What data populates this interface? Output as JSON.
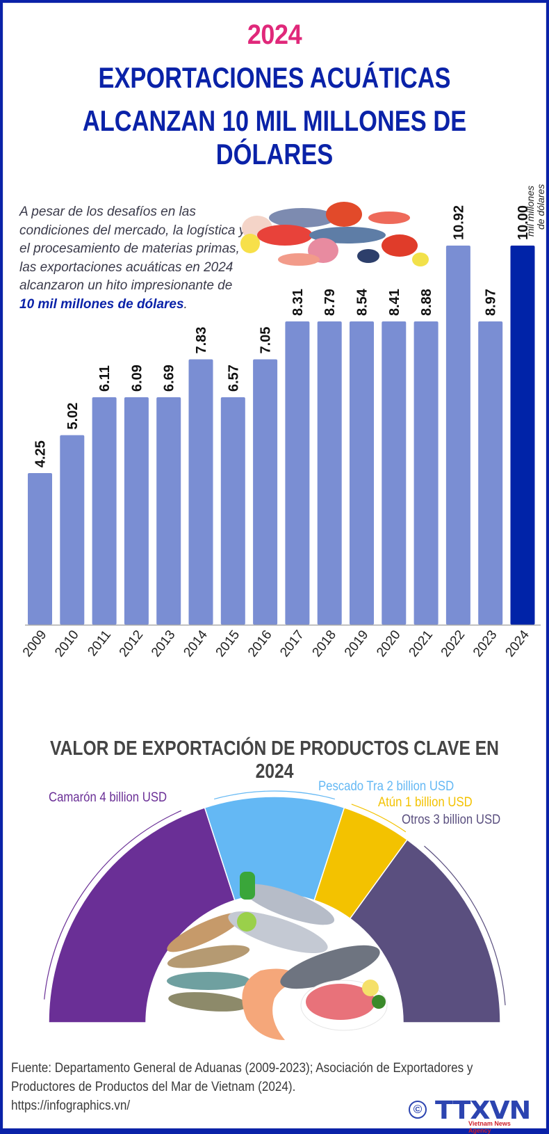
{
  "header": {
    "year": "2024",
    "title_line1": "EXPORTACIONES ACUÁTICAS",
    "title_line2": "ALCANZAN 10 MIL MILLONES DE DÓLARES"
  },
  "intro": {
    "text_before": "A pesar de los desafíos en las condiciones del mercado, la logística y el procesamiento de materias primas, las exportaciones acuáticas en 2024 alcanzaron un hito impresionante de ",
    "highlight": "10 mil millones de dólares",
    "text_after": "."
  },
  "colors": {
    "frame": "#0a22a8",
    "year": "#e0287a",
    "bar": "#7a8ed3",
    "bar_highlight": "#0023a8",
    "camaron": "#6a2f96",
    "pescado_tra": "#64b8f4",
    "atun": "#f3c200",
    "otros": "#5a4f7f"
  },
  "chart_data": [
    {
      "type": "bar",
      "title": "Exportaciones acuáticas",
      "unit_note": "mil millones de dólares",
      "categories": [
        "2009",
        "2010",
        "2011",
        "2012",
        "2013",
        "2014",
        "2015",
        "2016",
        "2017",
        "2018",
        "2019",
        "2020",
        "2021",
        "2022",
        "2023",
        "2024"
      ],
      "values": [
        4.25,
        5.02,
        6.11,
        6.09,
        6.69,
        7.83,
        6.57,
        7.05,
        8.31,
        8.79,
        8.54,
        8.41,
        8.88,
        10.92,
        8.97,
        10.0
      ],
      "value_labels": [
        "4.25",
        "5.02",
        "6.11",
        "6.09",
        "6.69",
        "7.83",
        "6.57",
        "7.05",
        "8.31",
        "8.79",
        "8.54",
        "8.41",
        "8.88",
        "10.92",
        "8.97",
        "10.00"
      ],
      "highlight_category": "2024",
      "xlabel": "",
      "ylabel": "",
      "grid": false
    },
    {
      "type": "pie",
      "variant": "half-donut",
      "title": "VALOR DE EXPORTACIÓN DE PRODUCTOS CLAVE EN 2024",
      "categories": [
        "Camarón",
        "Pescado Tra",
        "Atún",
        "Otros"
      ],
      "values": [
        4,
        2,
        1,
        3
      ],
      "unit": "billion USD",
      "labels": [
        "Camarón 4 billion USD",
        "Pescado Tra 2 billion USD",
        "Atún 1 billion USD",
        "Otros 3 billion USD"
      ]
    }
  ],
  "footer": {
    "source_line1": "Fuente: Departamento General de Aduanas (2009-2023); Asociación de Exportadores y",
    "source_line2": "Productores de Productos del Mar de Vietnam (2024).",
    "url": "https://infographics.vn/",
    "copyright_symbol": "©",
    "logo_text": "TTXVN",
    "logo_sub": "Vietnam News Agency"
  }
}
